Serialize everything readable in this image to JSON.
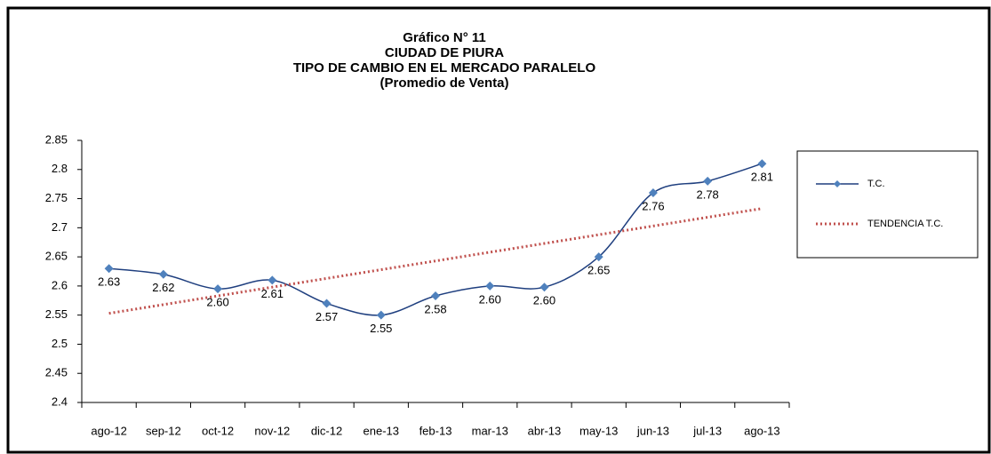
{
  "chart_data": {
    "type": "line",
    "title": [
      "Gráfico N° 11",
      "CIUDAD DE PIURA",
      "TIPO DE CAMBIO EN EL MERCADO PARALELO",
      "(Promedio de Venta)"
    ],
    "categories": [
      "ago-12",
      "sep-12",
      "oct-12",
      "nov-12",
      "dic-12",
      "ene-13",
      "feb-13",
      "mar-13",
      "abr-13",
      "may-13",
      "jun-13",
      "jul-13",
      "ago-13"
    ],
    "series": [
      {
        "name": "T.C.",
        "color": "#1f3f7f",
        "marker_color": "#4f81bd",
        "values": [
          2.63,
          2.62,
          2.595,
          2.61,
          2.57,
          2.55,
          2.583,
          2.6,
          2.598,
          2.65,
          2.76,
          2.78,
          2.81
        ],
        "value_labels": [
          "2.63",
          "2.62",
          "2.60",
          "2.61",
          "2.57",
          "2.55",
          "2.58",
          "2.60",
          "2.60",
          "2.65",
          "2.76",
          "2.78",
          "2.81"
        ]
      },
      {
        "name": "TENDENCIA T.C.",
        "color": "#c0504d",
        "dotted": true,
        "values": [
          2.553,
          2.568,
          2.583,
          2.598,
          2.613,
          2.628,
          2.643,
          2.658,
          2.673,
          2.688,
          2.703,
          2.718,
          2.733
        ]
      }
    ],
    "ylim": [
      2.4,
      2.85
    ],
    "yticks": [
      2.4,
      2.45,
      2.5,
      2.55,
      2.6,
      2.65,
      2.7,
      2.75,
      2.8,
      2.85
    ],
    "legend": "right"
  }
}
